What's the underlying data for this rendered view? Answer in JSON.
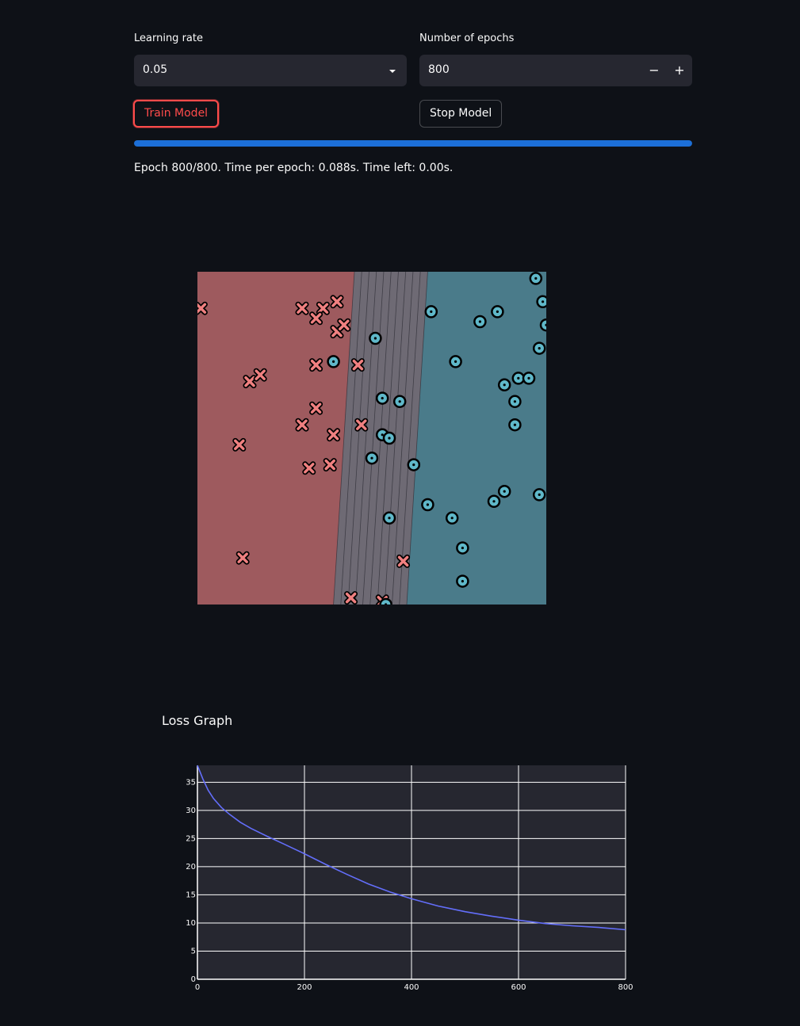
{
  "controls": {
    "learning_rate": {
      "label": "Learning rate",
      "value": "0.05"
    },
    "epochs": {
      "label": "Number of epochs",
      "value": "800",
      "decrement": "−",
      "increment": "+"
    },
    "train_button": "Train Model",
    "stop_button": "Stop Model"
  },
  "progress": {
    "fraction": 1.0,
    "status": "Epoch 800/800. Time per epoch: 0.088s. Time left: 0.00s."
  },
  "colors": {
    "accent": "#ff4b4b",
    "progress": "#1c6fd8",
    "class_x_region": "#9e5a5e",
    "class_o_region": "#4a7b8a",
    "class_x_marker": "#f08080",
    "class_o_marker": "#5fb8c9",
    "loss_line": "#636efa"
  },
  "chart_data": [
    {
      "type": "scatter",
      "title": "",
      "xlim": [
        0,
        10
      ],
      "ylim": [
        0,
        10
      ],
      "boundary_levels": 10,
      "series": [
        {
          "marker": "x",
          "points": [
            [
              5.9,
              1.3
            ],
            [
              1.3,
              1.4
            ],
            [
              0.1,
              8.9
            ],
            [
              4.6,
              7.2
            ],
            [
              4.0,
              8.2
            ],
            [
              3.8,
              4.2
            ],
            [
              3.2,
              4.1
            ],
            [
              4.4,
              0.2
            ],
            [
              3.6,
              8.9
            ],
            [
              1.2,
              4.8
            ],
            [
              3.4,
              7.2
            ],
            [
              3.0,
              5.4
            ],
            [
              3.4,
              8.6
            ],
            [
              4.0,
              9.1
            ],
            [
              4.2,
              8.4
            ],
            [
              4.7,
              5.4
            ],
            [
              3.9,
              5.1
            ],
            [
              1.5,
              6.7
            ],
            [
              3.0,
              8.9
            ],
            [
              1.8,
              6.9
            ],
            [
              3.4,
              5.9
            ],
            [
              5.3,
              0.1
            ]
          ]
        },
        {
          "marker": "o",
          "points": [
            [
              5.4,
              0.0
            ],
            [
              7.6,
              0.7
            ],
            [
              7.6,
              1.7
            ],
            [
              5.5,
              2.6
            ],
            [
              7.3,
              2.6
            ],
            [
              5.0,
              4.4
            ],
            [
              6.6,
              3.0
            ],
            [
              8.5,
              3.1
            ],
            [
              8.8,
              3.4
            ],
            [
              9.8,
              3.3
            ],
            [
              10.0,
              8.4
            ],
            [
              8.8,
              6.6
            ],
            [
              9.1,
              6.1
            ],
            [
              9.1,
              5.4
            ],
            [
              9.2,
              6.8
            ],
            [
              9.5,
              6.8
            ],
            [
              9.8,
              7.7
            ],
            [
              9.9,
              9.1
            ],
            [
              9.7,
              9.8
            ],
            [
              8.1,
              8.5
            ],
            [
              8.6,
              8.8
            ],
            [
              6.7,
              8.8
            ],
            [
              5.3,
              5.1
            ],
            [
              5.5,
              5.0
            ],
            [
              7.4,
              7.3
            ],
            [
              6.2,
              4.2
            ],
            [
              5.8,
              6.1
            ],
            [
              5.3,
              6.2
            ],
            [
              5.1,
              8.0
            ],
            [
              3.9,
              7.3
            ]
          ]
        }
      ]
    },
    {
      "type": "line",
      "title": "Loss Graph",
      "xlabel": "",
      "ylabel": "",
      "xlim": [
        0,
        800
      ],
      "ylim": [
        0,
        38
      ],
      "xticks": [
        0,
        200,
        400,
        600,
        800
      ],
      "yticks": [
        0,
        5,
        10,
        15,
        20,
        25,
        30,
        35
      ],
      "grid": true,
      "series": [
        {
          "x": [
            0,
            10,
            20,
            30,
            45,
            60,
            80,
            100,
            130,
            160,
            200,
            240,
            280,
            320,
            360,
            400,
            450,
            500,
            550,
            600,
            650,
            700,
            750,
            800
          ],
          "y": [
            38.0,
            35.6,
            33.6,
            32.1,
            30.5,
            29.3,
            27.9,
            26.8,
            25.4,
            24.1,
            22.3,
            20.4,
            18.6,
            16.9,
            15.5,
            14.3,
            13.0,
            12.0,
            11.2,
            10.5,
            9.9,
            9.5,
            9.2,
            8.8
          ]
        }
      ]
    }
  ]
}
